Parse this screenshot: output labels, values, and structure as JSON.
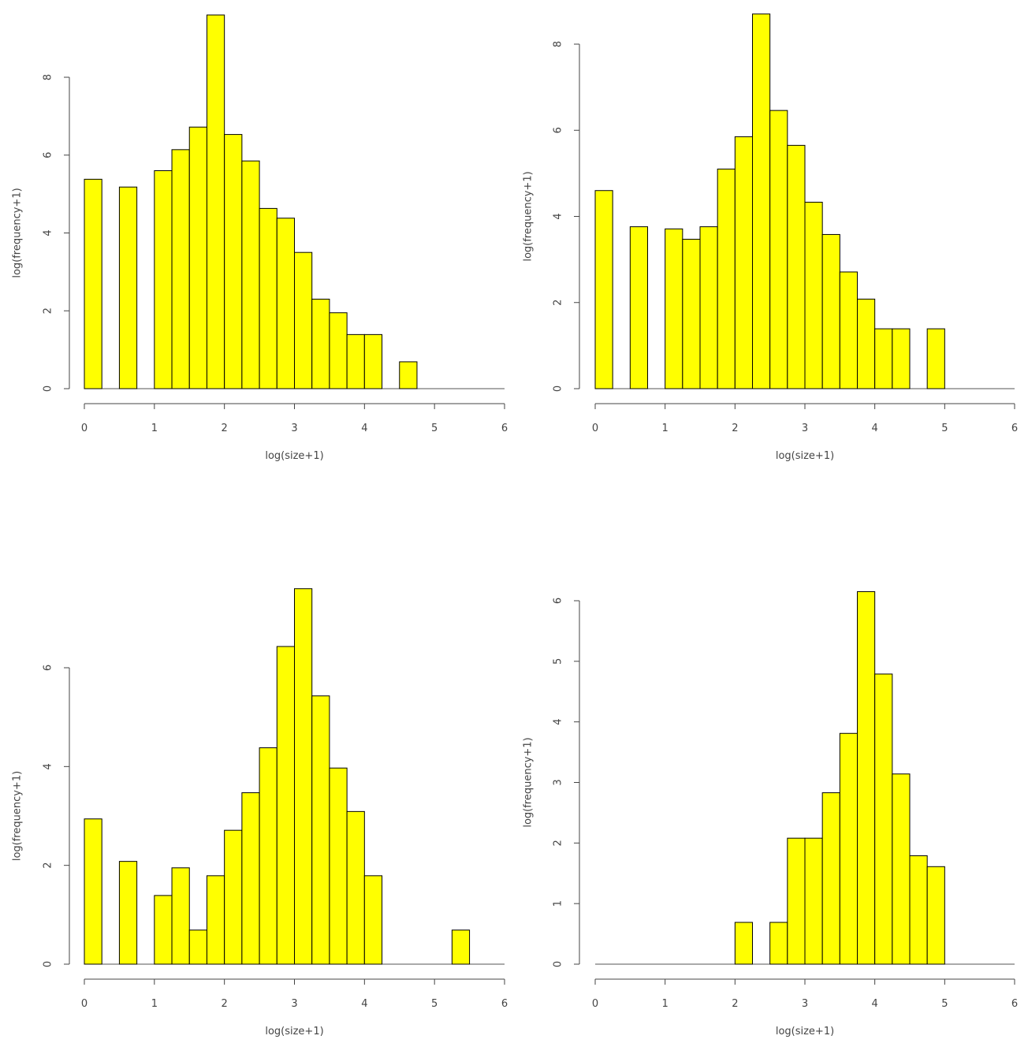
{
  "chart_data": [
    {
      "type": "bar",
      "panel": "top-left",
      "xlabel": "log(size+1)",
      "ylabel": "log(frequency+1)",
      "xlim": [
        0,
        6
      ],
      "ylim": [
        0,
        9.6
      ],
      "xticks": [
        0,
        1,
        2,
        3,
        4,
        5,
        6
      ],
      "yticks": [
        0,
        2,
        4,
        6,
        8
      ],
      "bin_width": 0.25,
      "bars": [
        {
          "x0": 0.0,
          "x1": 0.25,
          "value": 5.38
        },
        {
          "x0": 0.5,
          "x1": 0.75,
          "value": 5.18
        },
        {
          "x0": 1.0,
          "x1": 1.25,
          "value": 5.6
        },
        {
          "x0": 1.25,
          "x1": 1.5,
          "value": 6.14
        },
        {
          "x0": 1.5,
          "x1": 1.75,
          "value": 6.72
        },
        {
          "x0": 1.75,
          "x1": 2.0,
          "value": 9.6
        },
        {
          "x0": 2.0,
          "x1": 2.25,
          "value": 6.53
        },
        {
          "x0": 2.25,
          "x1": 2.5,
          "value": 5.85
        },
        {
          "x0": 2.5,
          "x1": 2.75,
          "value": 4.63
        },
        {
          "x0": 2.75,
          "x1": 3.0,
          "value": 4.38
        },
        {
          "x0": 3.0,
          "x1": 3.25,
          "value": 3.5
        },
        {
          "x0": 3.25,
          "x1": 3.5,
          "value": 2.3
        },
        {
          "x0": 3.5,
          "x1": 3.75,
          "value": 1.95
        },
        {
          "x0": 3.75,
          "x1": 4.0,
          "value": 1.39
        },
        {
          "x0": 4.0,
          "x1": 4.25,
          "value": 1.39
        },
        {
          "x0": 4.5,
          "x1": 4.75,
          "value": 0.69
        }
      ]
    },
    {
      "type": "bar",
      "panel": "top-right",
      "xlabel": "log(size+1)",
      "ylabel": "log(frequency+1)",
      "xlim": [
        0,
        6
      ],
      "ylim": [
        0,
        8.7
      ],
      "xticks": [
        0,
        1,
        2,
        3,
        4,
        5,
        6
      ],
      "yticks": [
        0,
        2,
        4,
        6,
        8
      ],
      "bin_width": 0.25,
      "bars": [
        {
          "x0": 0.0,
          "x1": 0.25,
          "value": 4.6
        },
        {
          "x0": 0.5,
          "x1": 0.75,
          "value": 3.76
        },
        {
          "x0": 1.0,
          "x1": 1.25,
          "value": 3.71
        },
        {
          "x0": 1.25,
          "x1": 1.5,
          "value": 3.47
        },
        {
          "x0": 1.5,
          "x1": 1.75,
          "value": 3.76
        },
        {
          "x0": 1.75,
          "x1": 2.0,
          "value": 5.1
        },
        {
          "x0": 2.0,
          "x1": 2.25,
          "value": 5.85
        },
        {
          "x0": 2.25,
          "x1": 2.5,
          "value": 8.7
        },
        {
          "x0": 2.5,
          "x1": 2.75,
          "value": 6.46
        },
        {
          "x0": 2.75,
          "x1": 3.0,
          "value": 5.65
        },
        {
          "x0": 3.0,
          "x1": 3.25,
          "value": 4.33
        },
        {
          "x0": 3.25,
          "x1": 3.5,
          "value": 3.58
        },
        {
          "x0": 3.5,
          "x1": 3.75,
          "value": 2.71
        },
        {
          "x0": 3.75,
          "x1": 4.0,
          "value": 2.08
        },
        {
          "x0": 4.0,
          "x1": 4.25,
          "value": 1.39
        },
        {
          "x0": 4.25,
          "x1": 4.5,
          "value": 1.39
        },
        {
          "x0": 4.75,
          "x1": 5.0,
          "value": 1.39
        }
      ]
    },
    {
      "type": "bar",
      "panel": "bottom-left",
      "xlabel": "log(size+1)",
      "ylabel": "log(frequency+1)",
      "xlim": [
        0,
        6
      ],
      "ylim": [
        0,
        7.6
      ],
      "xticks": [
        0,
        1,
        2,
        3,
        4,
        5,
        6
      ],
      "yticks": [
        0,
        2,
        4,
        6
      ],
      "bin_width": 0.25,
      "bars": [
        {
          "x0": 0.0,
          "x1": 0.25,
          "value": 2.94
        },
        {
          "x0": 0.5,
          "x1": 0.75,
          "value": 2.08
        },
        {
          "x0": 1.0,
          "x1": 1.25,
          "value": 1.39
        },
        {
          "x0": 1.25,
          "x1": 1.5,
          "value": 1.95
        },
        {
          "x0": 1.5,
          "x1": 1.75,
          "value": 0.69
        },
        {
          "x0": 1.75,
          "x1": 2.0,
          "value": 1.79
        },
        {
          "x0": 2.0,
          "x1": 2.25,
          "value": 2.71
        },
        {
          "x0": 2.25,
          "x1": 2.5,
          "value": 3.47
        },
        {
          "x0": 2.5,
          "x1": 2.75,
          "value": 4.38
        },
        {
          "x0": 2.75,
          "x1": 3.0,
          "value": 6.43
        },
        {
          "x0": 3.0,
          "x1": 3.25,
          "value": 7.6
        },
        {
          "x0": 3.25,
          "x1": 3.5,
          "value": 5.43
        },
        {
          "x0": 3.5,
          "x1": 3.75,
          "value": 3.97
        },
        {
          "x0": 3.75,
          "x1": 4.0,
          "value": 3.09
        },
        {
          "x0": 4.0,
          "x1": 4.25,
          "value": 1.79
        },
        {
          "x0": 5.25,
          "x1": 5.5,
          "value": 0.69
        }
      ]
    },
    {
      "type": "bar",
      "panel": "bottom-right",
      "xlabel": "log(size+1)",
      "ylabel": "log(frequency+1)",
      "xlim": [
        0,
        6
      ],
      "ylim": [
        0,
        6.15
      ],
      "xticks": [
        0,
        1,
        2,
        3,
        4,
        5,
        6
      ],
      "yticks": [
        0,
        1,
        2,
        3,
        4,
        5,
        6
      ],
      "bin_width": 0.25,
      "bars": [
        {
          "x0": 2.0,
          "x1": 2.25,
          "value": 0.69
        },
        {
          "x0": 2.5,
          "x1": 2.75,
          "value": 0.69
        },
        {
          "x0": 2.75,
          "x1": 3.0,
          "value": 2.08
        },
        {
          "x0": 3.0,
          "x1": 3.25,
          "value": 2.08
        },
        {
          "x0": 3.25,
          "x1": 3.5,
          "value": 2.83
        },
        {
          "x0": 3.5,
          "x1": 3.75,
          "value": 3.81
        },
        {
          "x0": 3.75,
          "x1": 4.0,
          "value": 6.15
        },
        {
          "x0": 4.0,
          "x1": 4.25,
          "value": 4.79
        },
        {
          "x0": 4.25,
          "x1": 4.5,
          "value": 3.14
        },
        {
          "x0": 4.5,
          "x1": 4.75,
          "value": 1.79
        },
        {
          "x0": 4.75,
          "x1": 5.0,
          "value": 1.61
        }
      ]
    }
  ],
  "style": {
    "bar_fill": "#ffff00",
    "bar_stroke": "#000000",
    "axis_color": "#444444",
    "baseline_color": "#555555"
  }
}
